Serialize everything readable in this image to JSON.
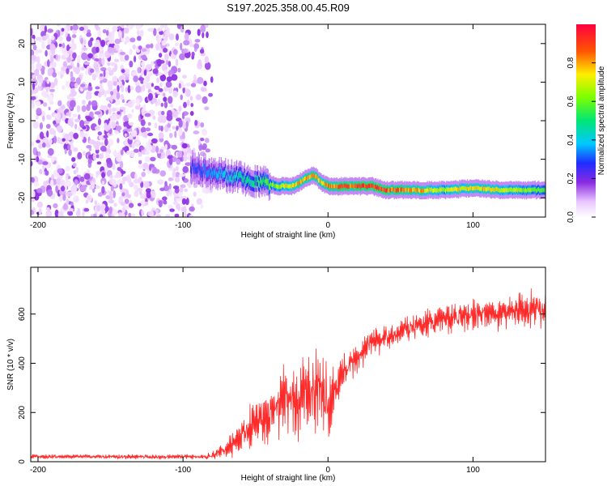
{
  "title": "S197.2025.358.00.45.R09",
  "chart_data": [
    {
      "type": "heatmap",
      "title": "S197.2025.358.00.45.R09",
      "xlabel": "Height of straight line (km)",
      "ylabel": "Frequency (Hz)",
      "xlim": [
        -205,
        150
      ],
      "ylim": [
        -25,
        25
      ],
      "xticks": [
        -200,
        -100,
        0,
        100
      ],
      "xtick_labels": [
        "-200",
        "-100",
        "0",
        "100"
      ],
      "yticks": [
        -20,
        -10,
        0,
        10,
        20
      ],
      "ytick_labels": [
        "-20",
        "-10",
        "0",
        "10",
        "20"
      ],
      "colorbar": {
        "label": "Normalized spectral amplitude",
        "range": [
          0,
          1
        ],
        "ticks": [
          0,
          0.2,
          0.4,
          0.6,
          0.8
        ],
        "tick_labels": [
          "0.0",
          "0.2",
          "0.4",
          "0.6",
          "0.8"
        ]
      },
      "noise_region": {
        "x": [
          -205,
          -75
        ],
        "y": [
          -25,
          25
        ],
        "amplitude": 0.1
      },
      "ridge": {
        "x": [
          -95,
          -85,
          -75,
          -65,
          -55,
          -45,
          -35,
          -25,
          -15,
          -10,
          -5,
          0,
          10,
          20,
          30,
          40,
          60,
          80,
          100,
          120,
          150
        ],
        "frequency": [
          -12,
          -13,
          -14,
          -14.5,
          -15.5,
          -16,
          -17,
          -17,
          -15,
          -14,
          -16,
          -17,
          -17,
          -17,
          -17,
          -18,
          -18,
          -18,
          -17.5,
          -18,
          -18
        ],
        "amplitude": [
          0.3,
          0.35,
          0.4,
          0.45,
          0.5,
          0.55,
          0.7,
          0.8,
          0.85,
          0.85,
          0.8,
          0.85,
          0.9,
          0.95,
          0.95,
          0.9,
          0.85,
          0.7,
          0.8,
          0.75,
          0.6
        ]
      }
    },
    {
      "type": "line",
      "xlabel": "Height of straight line (km)",
      "ylabel": "SNR (10 * v/v)",
      "xlim": [
        -205,
        150
      ],
      "ylim": [
        0,
        790
      ],
      "xticks": [
        -200,
        -100,
        0,
        100
      ],
      "xtick_labels": [
        "-200",
        "-100",
        "0",
        "100"
      ],
      "yticks": [
        0,
        200,
        400,
        600
      ],
      "ytick_labels": [
        "0",
        "200",
        "400",
        "600"
      ],
      "color": "#ff2a2a",
      "series": [
        {
          "x": [
            -205,
            -180,
            -150,
            -120,
            -90,
            -80,
            -70,
            -60,
            -50,
            -40,
            -30,
            -20,
            -10,
            -5,
            0,
            5,
            10,
            20,
            30,
            40,
            50,
            60,
            70,
            80,
            90,
            100,
            110,
            120,
            130,
            140,
            150
          ],
          "y": [
            20,
            20,
            20,
            20,
            20,
            22,
            50,
            110,
            160,
            200,
            240,
            260,
            300,
            300,
            200,
            300,
            360,
            420,
            480,
            510,
            530,
            550,
            565,
            580,
            585,
            595,
            600,
            610,
            615,
            620,
            620
          ],
          "amplitude": [
            10,
            10,
            10,
            10,
            12,
            15,
            50,
            90,
            120,
            140,
            150,
            180,
            180,
            200,
            200,
            120,
            80,
            70,
            60,
            60,
            60,
            60,
            60,
            60,
            70,
            70,
            70,
            80,
            80,
            80,
            80
          ]
        }
      ]
    }
  ]
}
